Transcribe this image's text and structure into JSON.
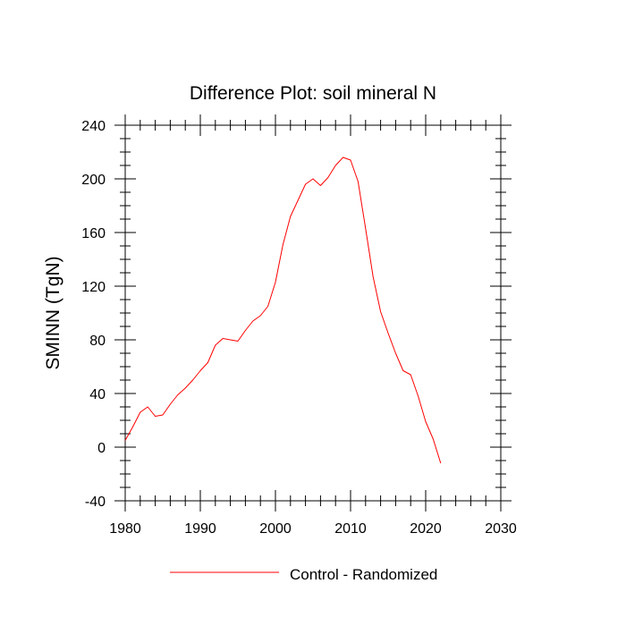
{
  "chart_data": {
    "type": "line",
    "title": "Difference Plot: soil mineral N",
    "xlabel": "",
    "ylabel": "SMINN  (TgN)",
    "xlim": [
      1980,
      2030
    ],
    "ylim": [
      -40,
      240
    ],
    "xticks": [
      1980,
      1990,
      2000,
      2010,
      2020,
      2030
    ],
    "yticks": [
      -40,
      0,
      40,
      80,
      120,
      160,
      200,
      240
    ],
    "grid": false,
    "legend_position": "bottom-center",
    "series": [
      {
        "name": "Control - Randomized",
        "color": "#ff0000",
        "x": [
          1980,
          1981,
          1982,
          1983,
          1984,
          1985,
          1986,
          1987,
          1988,
          1989,
          1990,
          1991,
          1992,
          1993,
          1994,
          1995,
          1996,
          1997,
          1998,
          1999,
          2000,
          2001,
          2002,
          2003,
          2004,
          2005,
          2006,
          2007,
          2008,
          2009,
          2010,
          2011,
          2012,
          2013,
          2014,
          2015,
          2016,
          2017,
          2018,
          2019,
          2020,
          2021,
          2022
        ],
        "y": [
          5,
          15,
          26,
          30,
          23,
          24,
          32,
          39,
          44,
          50,
          57,
          63,
          76,
          81,
          80,
          79,
          87,
          94,
          98,
          105,
          123,
          151,
          172,
          184,
          196,
          200,
          195,
          201,
          210,
          216,
          214,
          198,
          163,
          127,
          101,
          85,
          70,
          57,
          54,
          38,
          19,
          6,
          -12
        ]
      }
    ]
  }
}
